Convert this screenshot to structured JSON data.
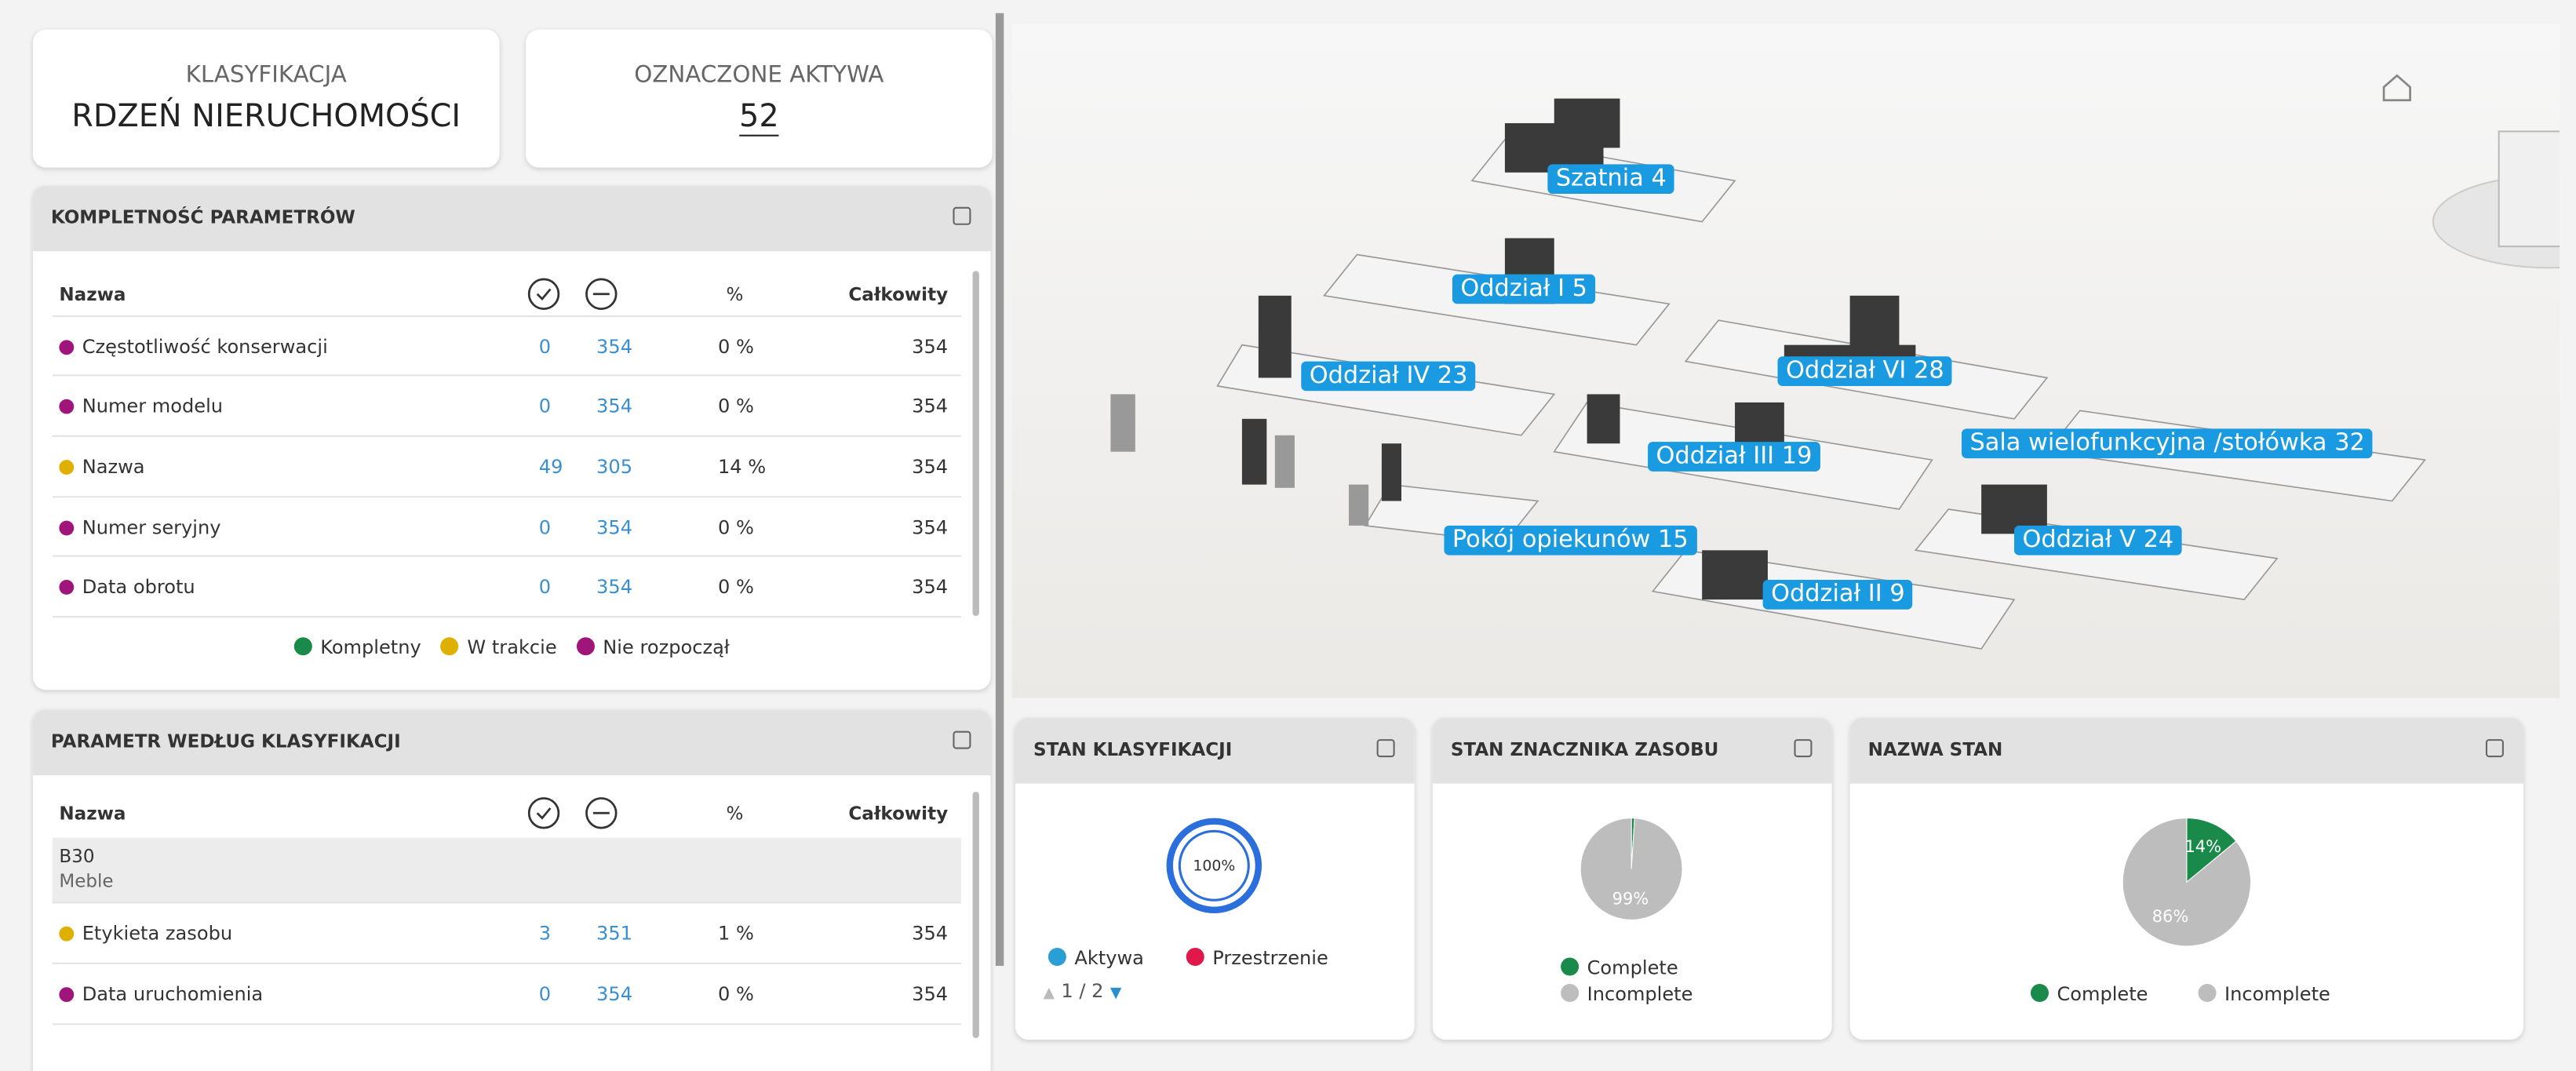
{
  "header": {
    "classification": {
      "label": "KLASYFIKACJA",
      "value": "RDZEŃ NIERUCHOMOŚCI"
    },
    "tagged": {
      "label": "OZNACZONE AKTYWA",
      "value": "52"
    }
  },
  "completeness": {
    "title": "KOMPLETNOŚĆ PARAMETRÓW",
    "name_header": "Nazwa",
    "pct_header": "%",
    "total_header": "Całkowity",
    "rows": [
      {
        "name": "Częstotliwość konserwacji",
        "color": "#a0157a",
        "complete": 0,
        "incomplete": 354,
        "percent": "0 %",
        "total": 354
      },
      {
        "name": "Numer modelu",
        "color": "#a0157a",
        "complete": 0,
        "incomplete": 354,
        "percent": "0 %",
        "total": 354
      },
      {
        "name": "Nazwa",
        "color": "#e0b000",
        "complete": 49,
        "incomplete": 305,
        "percent": "14 %",
        "total": 354
      },
      {
        "name": "Numer seryjny",
        "color": "#a0157a",
        "complete": 0,
        "incomplete": 354,
        "percent": "0 %",
        "total": 354
      },
      {
        "name": "Data obrotu",
        "color": "#a0157a",
        "complete": 0,
        "incomplete": 354,
        "percent": "0 %",
        "total": 354
      }
    ],
    "legend": [
      {
        "label": "Kompletny",
        "color": "#1a8a4a"
      },
      {
        "label": "W trakcie",
        "color": "#e0b000"
      },
      {
        "label": "Nie rozpoczął",
        "color": "#a0157a"
      }
    ]
  },
  "by_classification": {
    "title": "PARAMETR WEDŁUG KLASYFIKACJI",
    "name_header": "Nazwa",
    "pct_header": "%",
    "total_header": "Całkowity",
    "group": {
      "code": "B30",
      "name": "Meble"
    },
    "rows": [
      {
        "name": "Etykieta zasobu",
        "color": "#e0b000",
        "complete": 3,
        "incomplete": 351,
        "percent": "1 %",
        "total": 354
      },
      {
        "name": "Data uruchomienia",
        "color": "#a0157a",
        "complete": 0,
        "incomplete": 354,
        "percent": "0 %",
        "total": 354
      }
    ]
  },
  "viewer": {
    "labels": [
      "Szatnia 4",
      "Oddział I 5",
      "Oddział IV 23",
      "Oddział VI 28",
      "Oddział III 19",
      "Sala wielofunkcyjna /stołówka 32",
      "Pokój opiekunów 15",
      "Oddział V 24",
      "Oddział II 9"
    ]
  },
  "classification_status": {
    "title": "STAN KLASYFIKACJI",
    "chart": {
      "type": "donut",
      "values": [
        100
      ],
      "value_labels": [
        "100%"
      ],
      "colors": [
        "#2a6fdb"
      ]
    },
    "legend": [
      {
        "label": "Aktywa",
        "color": "#2a9fd6"
      },
      {
        "label": "Przestrzenie",
        "color": "#e0194a"
      }
    ],
    "pager": "1 / 2"
  },
  "tag_status": {
    "title": "STAN ZNACZNIKA ZASOBU",
    "chart": {
      "type": "pie",
      "values": [
        1,
        99
      ],
      "value_labels": [
        null,
        "99%"
      ],
      "colors": [
        "#1a8a4a",
        "#bdbdbd"
      ]
    },
    "legend": [
      {
        "label": "Complete",
        "color": "#1a8a4a"
      },
      {
        "label": "Incomplete",
        "color": "#bdbdbd"
      }
    ]
  },
  "name_status": {
    "title": "NAZWA STAN",
    "chart": {
      "type": "pie",
      "values": [
        14,
        86
      ],
      "value_labels": [
        "14%",
        "86%"
      ],
      "colors": [
        "#1a8a4a",
        "#bdbdbd"
      ]
    },
    "legend": [
      {
        "label": "Complete",
        "color": "#1a8a4a"
      },
      {
        "label": "Incomplete",
        "color": "#bdbdbd"
      }
    ]
  }
}
